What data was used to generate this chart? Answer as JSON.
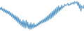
{
  "line_color": "#4a90c4",
  "background_color": "#ffffff",
  "linewidth": 0.7,
  "values": [
    3.2,
    2.5,
    3.5,
    2.2,
    3.0,
    1.8,
    2.8,
    1.5,
    2.5,
    1.2,
    2.2,
    1.0,
    2.0,
    0.5,
    1.5,
    0.0,
    1.2,
    -0.5,
    0.8,
    -1.0,
    0.5,
    -1.5,
    0.2,
    -2.0,
    -0.2,
    -2.5,
    -0.8,
    -3.0,
    -1.5,
    -3.5,
    -1.0,
    -3.8,
    -1.5,
    -4.0,
    -1.2,
    -3.8,
    -1.8,
    -4.2,
    -2.5,
    -4.5,
    -2.0,
    -4.3,
    -2.5,
    -4.0,
    -2.2,
    -3.8,
    -2.8,
    -3.5,
    -2.4,
    -3.2,
    -2.0,
    -2.8,
    -1.5,
    -2.5,
    -1.2,
    -2.2,
    -0.8,
    -2.0,
    -0.5,
    -1.8,
    0.0,
    -1.5,
    0.5,
    -1.2,
    1.0,
    -0.8,
    1.5,
    -0.5,
    2.0,
    0.0,
    2.5,
    0.5,
    3.0,
    1.0,
    3.5,
    1.5,
    4.0,
    2.0,
    3.5,
    2.5,
    4.2,
    3.0,
    3.8,
    3.5,
    4.5,
    4.0,
    4.0,
    4.5,
    4.8,
    4.0,
    4.5,
    4.2,
    5.0,
    4.5,
    4.8,
    5.2,
    4.5,
    5.5,
    5.0,
    4.8,
    5.5,
    4.0,
    5.2,
    3.0,
    4.5,
    2.0,
    4.0,
    3.5,
    3.0,
    4.2
  ]
}
